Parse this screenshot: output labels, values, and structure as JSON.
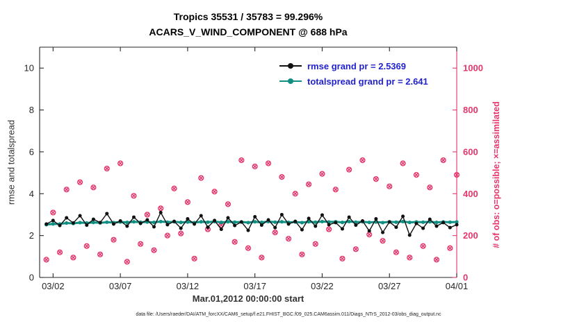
{
  "title": {
    "line1": "Tropics 35531 / 35783 = 99.296%",
    "line2": "ACARS_V_WIND_COMPONENT @ 688 hPa"
  },
  "legend": {
    "rmse_label": "rmse grand pr = 2.5369",
    "totalspread_label": "totalspread grand pr = 2.641"
  },
  "caption": "data file: /Users/raeder/DAI/ATM_forcXX/CAM6_setup/f.e21.FHIST_BGC.f09_025.CAM6assim.011/Diags_NTrS_2012-03/obs_diag_output.nc",
  "colors": {
    "rmse": "#111111",
    "totalspread": "#0e8f82",
    "obs": "#e5356b",
    "legend_text": "#2222cc",
    "axis": "#262626"
  },
  "chart_data": {
    "type": "line+scatter",
    "title": "Tropics 35531 / 35783 = 99.296%",
    "subtitle": "ACARS_V_WIND_COMPONENT @ 688 hPa",
    "xlabel": "Mar.01,2012 00:00:00 start",
    "ylabel_left": "rmse and totalspread",
    "ylabel_right": "# of obs: o=possible; ×=assimilated",
    "xlim": [
      0,
      31
    ],
    "ylim_left": [
      0,
      11
    ],
    "ylim_right": [
      0,
      1100
    ],
    "grid": false,
    "legend_position": "top-right-inside",
    "xticks": {
      "positions": [
        1,
        6,
        11,
        16,
        21,
        26,
        31
      ],
      "labels": [
        "03/02",
        "03/07",
        "03/12",
        "03/17",
        "03/22",
        "03/27",
        "04/01"
      ]
    },
    "yticks_left": [
      0,
      2,
      4,
      6,
      8,
      10
    ],
    "yticks_right": [
      0,
      200,
      400,
      600,
      800,
      1000
    ],
    "x": [
      0.5,
      1,
      1.5,
      2,
      2.5,
      3,
      3.5,
      4,
      4.5,
      5,
      5.5,
      6,
      6.5,
      7,
      7.5,
      8,
      8.5,
      9,
      9.5,
      10,
      10.5,
      11,
      11.5,
      12,
      12.5,
      13,
      13.5,
      14,
      14.5,
      15,
      15.5,
      16,
      16.5,
      17,
      17.5,
      18,
      18.5,
      19,
      19.5,
      20,
      20.5,
      21,
      21.5,
      22,
      22.5,
      23,
      23.5,
      24,
      24.5,
      25,
      25.5,
      26,
      26.5,
      27,
      27.5,
      28,
      28.5,
      29,
      29.5,
      30,
      30.5,
      31
    ],
    "series": [
      {
        "name": "rmse",
        "axis": "left",
        "style": "line-dot",
        "grand_mean": 2.5369,
        "values": [
          2.55,
          2.72,
          2.48,
          2.85,
          2.6,
          2.95,
          2.5,
          2.78,
          2.62,
          3.05,
          2.55,
          2.7,
          2.45,
          2.88,
          2.58,
          2.75,
          2.42,
          3.1,
          2.52,
          2.68,
          2.35,
          2.8,
          2.55,
          2.95,
          2.4,
          2.72,
          2.3,
          2.85,
          2.48,
          2.65,
          2.25,
          2.9,
          2.5,
          2.75,
          2.38,
          3.0,
          2.55,
          2.68,
          2.28,
          2.82,
          2.45,
          2.98,
          2.52,
          2.62,
          2.32,
          2.88,
          2.5,
          2.7,
          2.22,
          2.8,
          2.15,
          2.65,
          2.4,
          2.92,
          2.02,
          2.58,
          2.35,
          2.78,
          2.45,
          2.62,
          2.38,
          2.52
        ]
      },
      {
        "name": "totalspread",
        "axis": "left",
        "style": "line-dot",
        "grand_mean": 2.641,
        "values": [
          2.52,
          2.56,
          2.55,
          2.6,
          2.58,
          2.62,
          2.6,
          2.63,
          2.61,
          2.64,
          2.62,
          2.65,
          2.63,
          2.66,
          2.64,
          2.65,
          2.63,
          2.67,
          2.64,
          2.66,
          2.63,
          2.65,
          2.62,
          2.66,
          2.64,
          2.67,
          2.63,
          2.66,
          2.64,
          2.65,
          2.62,
          2.66,
          2.63,
          2.67,
          2.64,
          2.66,
          2.63,
          2.65,
          2.62,
          2.66,
          2.64,
          2.67,
          2.65,
          2.66,
          2.63,
          2.67,
          2.64,
          2.66,
          2.63,
          2.65,
          2.62,
          2.66,
          2.64,
          2.67,
          2.63,
          2.65,
          2.64,
          2.66,
          2.63,
          2.65,
          2.64,
          2.65
        ]
      },
      {
        "name": "obs_possible",
        "axis": "right",
        "style": "scatter",
        "marker": "o",
        "values": [
          85,
          310,
          120,
          420,
          95,
          455,
          150,
          430,
          110,
          520,
          180,
          545,
          75,
          390,
          160,
          300,
          130,
          330,
          200,
          425,
          210,
          360,
          90,
          475,
          230,
          410,
          250,
          350,
          170,
          560,
          140,
          530,
          95,
          545,
          215,
          480,
          185,
          400,
          110,
          445,
          160,
          495,
          230,
          420,
          90,
          515,
          135,
          560,
          205,
          470,
          175,
          435,
          120,
          545,
          95,
          490,
          150,
          430,
          85,
          560,
          140,
          490
        ]
      },
      {
        "name": "obs_assimilated",
        "axis": "right",
        "style": "scatter",
        "marker": "x",
        "values": [
          85,
          310,
          120,
          420,
          95,
          455,
          150,
          430,
          110,
          520,
          180,
          545,
          75,
          390,
          160,
          300,
          130,
          330,
          200,
          425,
          210,
          360,
          90,
          475,
          230,
          410,
          250,
          350,
          170,
          560,
          140,
          530,
          95,
          545,
          215,
          480,
          185,
          400,
          110,
          445,
          160,
          495,
          230,
          420,
          90,
          515,
          135,
          560,
          205,
          470,
          175,
          435,
          120,
          545,
          95,
          490,
          150,
          430,
          85,
          560,
          140,
          490
        ]
      }
    ]
  }
}
